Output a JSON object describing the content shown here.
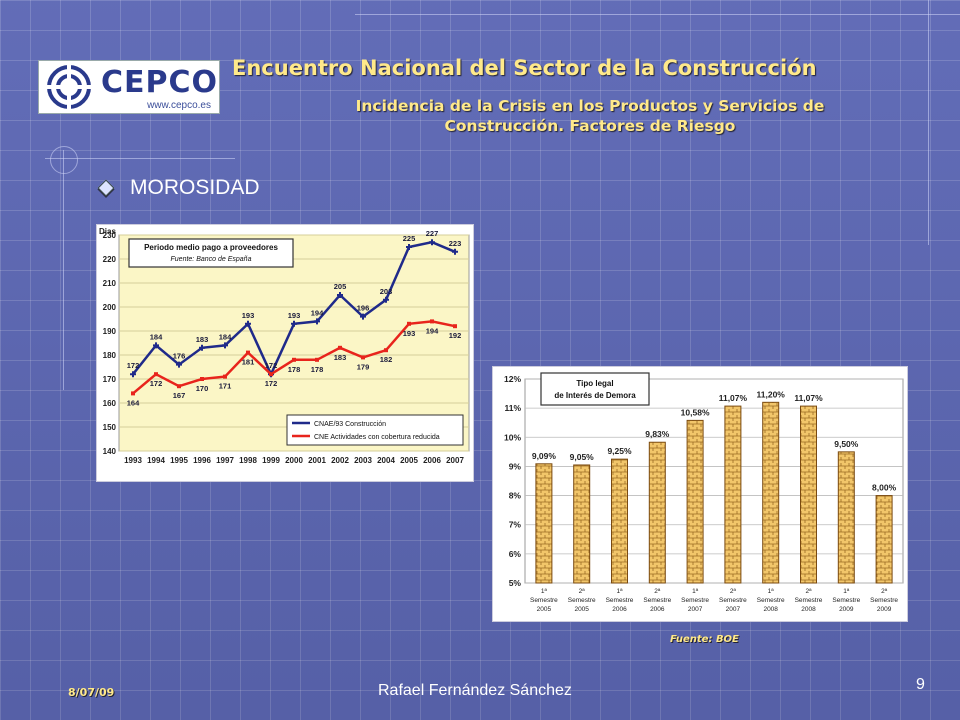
{
  "header": {
    "logo_text": "CEPCO",
    "logo_url": "www.cepco.es",
    "title": "Encuentro Nacional del Sector de la Construcción",
    "subtitle_line1": "Incidencia de la Crisis en los Productos y Servicios de",
    "subtitle_line2": "Construcción. Factores de Riesgo"
  },
  "section": {
    "bullet_label": "MOROSIDAD"
  },
  "footer": {
    "date": "8/07/09",
    "author": "Rafael Fernández Sánchez",
    "page_number": "9",
    "source_label": "Fuente: BOE"
  },
  "colors": {
    "title_yellow": "#ffe98a",
    "series_blue": "#1f2a8a",
    "series_red": "#e8241c",
    "bar_fill": "#f2c66a",
    "chart_bg": "#fbf6c6"
  },
  "chart_data": [
    {
      "type": "line",
      "title": "Periodo medio pago a proveedores",
      "subtitle": "Fuente: Banco de España",
      "ylabel": "Dias",
      "ylim": [
        140,
        230
      ],
      "yticks": [
        140,
        150,
        160,
        170,
        180,
        190,
        200,
        210,
        220,
        230
      ],
      "categories": [
        "1993",
        "1994",
        "1995",
        "1996",
        "1997",
        "1998",
        "1999",
        "2000",
        "2001",
        "2002",
        "2003",
        "2004",
        "2005",
        "2006",
        "2007"
      ],
      "series": [
        {
          "name": "CNAE/93 Construcción",
          "values": [
            172,
            184,
            176,
            183,
            184,
            193,
            172,
            193,
            194,
            205,
            196,
            203,
            225,
            227,
            223
          ]
        },
        {
          "name": "CNE Actividades con cobertura reducida",
          "values": [
            164,
            172,
            167,
            170,
            171,
            181,
            172,
            178,
            178,
            183,
            179,
            182,
            193,
            194,
            192
          ]
        }
      ],
      "grid": true,
      "legend": "bottom-right"
    },
    {
      "type": "bar",
      "title": "Tipo legal de Interés de Demora",
      "ylim": [
        5,
        12
      ],
      "yticks": [
        "5%",
        "6%",
        "7%",
        "8%",
        "9%",
        "10%",
        "11%",
        "12%"
      ],
      "categories": [
        [
          "1ª",
          "Semestre",
          "2005"
        ],
        [
          "2ª",
          "Semestre",
          "2005"
        ],
        [
          "1ª",
          "Semestre",
          "2006"
        ],
        [
          "2ª",
          "Semestre",
          "2006"
        ],
        [
          "1ª",
          "Semestre",
          "2007"
        ],
        [
          "2ª",
          "Semestre",
          "2007"
        ],
        [
          "1ª",
          "Semestre",
          "2008"
        ],
        [
          "2ª",
          "Semestre",
          "2008"
        ],
        [
          "1ª",
          "Semestre",
          "2009"
        ],
        [
          "2ª",
          "Semestre",
          "2009"
        ]
      ],
      "values": [
        9.09,
        9.05,
        9.25,
        9.83,
        10.58,
        11.07,
        11.2,
        11.07,
        9.5,
        8.0
      ],
      "value_labels": [
        "9,09%",
        "9,05%",
        "9,25%",
        "9,83%",
        "10,58%",
        "11,07%",
        "11,20%",
        "11,07%",
        "9,50%",
        "8,00%"
      ],
      "grid": true
    }
  ]
}
